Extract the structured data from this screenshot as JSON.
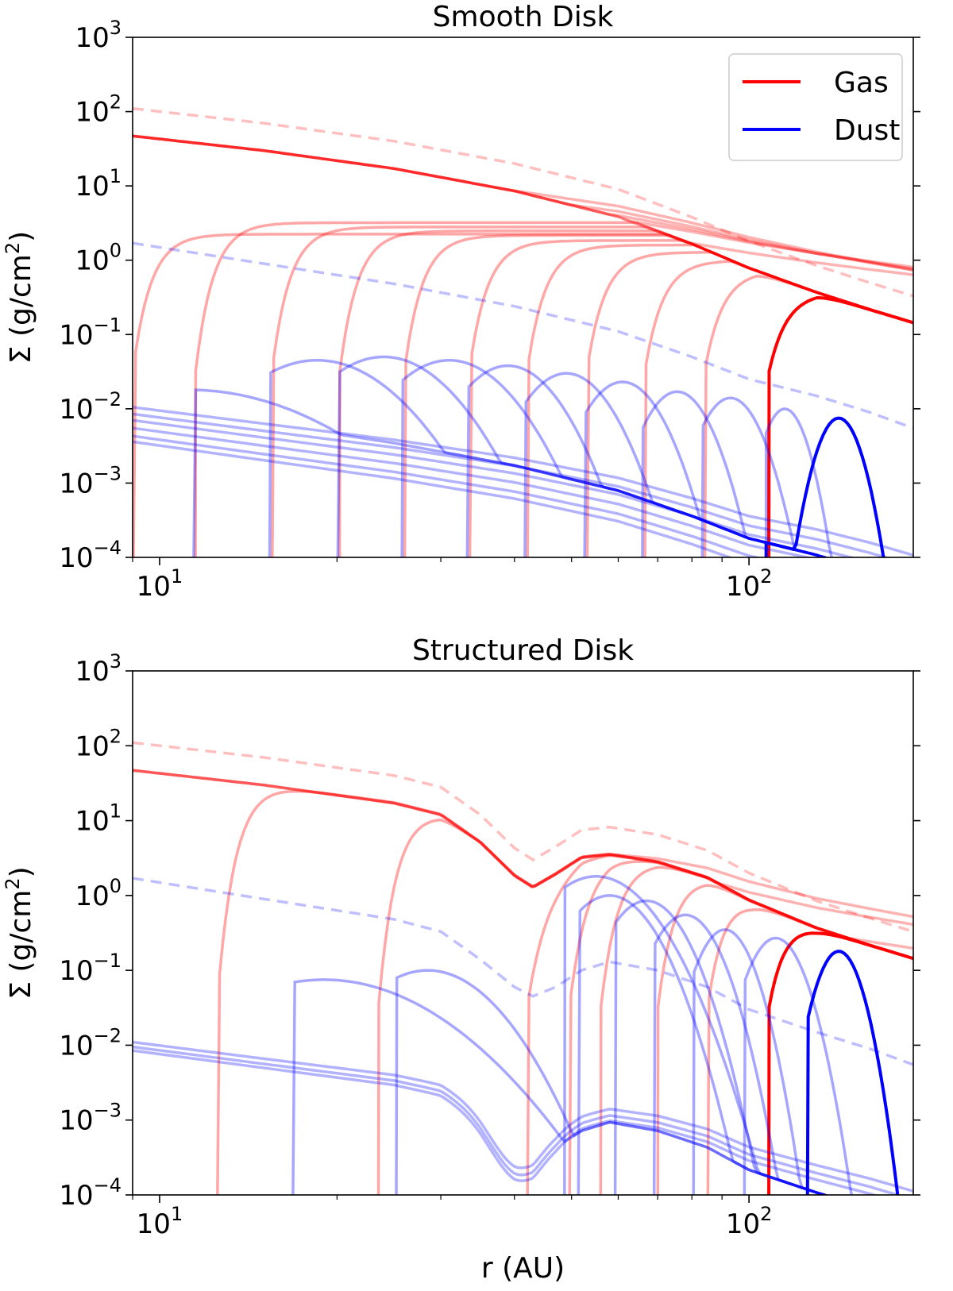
{
  "chart_data": [
    {
      "type": "line",
      "title": "Smooth Disk",
      "xlabel": "",
      "ylabel": "Σ (g/cm²)",
      "xscale": "log",
      "yscale": "log",
      "xlim": [
        9.0,
        190
      ],
      "ylim": [
        0.0001,
        1000
      ],
      "x_ticks": [
        "10^1",
        "10^2"
      ],
      "y_ticks": [
        "10^-4",
        "10^-3",
        "10^-2",
        "10^-1",
        "10^0",
        "10^1",
        "10^2",
        "10^3"
      ],
      "legend": {
        "placement": "top-right",
        "entries": [
          {
            "name": "Gas",
            "color": "#ff0000"
          },
          {
            "name": "Dust",
            "color": "#0000ff"
          }
        ]
      },
      "initial_profiles": [
        {
          "series": "Gas",
          "style": "dashed",
          "points": [
            [
              9,
              110
            ],
            [
              15,
              70
            ],
            [
              25,
              40
            ],
            [
              40,
              20
            ],
            [
              60,
              9
            ],
            [
              80,
              3.8
            ],
            [
              100,
              1.8
            ],
            [
              130,
              0.85
            ],
            [
              160,
              0.5
            ],
            [
              190,
              0.33
            ]
          ]
        },
        {
          "series": "Dust",
          "style": "dashed",
          "points": [
            [
              9,
              1.7
            ],
            [
              15,
              0.9
            ],
            [
              25,
              0.48
            ],
            [
              40,
              0.24
            ],
            [
              60,
              0.11
            ],
            [
              80,
              0.05
            ],
            [
              100,
              0.025
            ],
            [
              130,
              0.015
            ],
            [
              160,
              0.009
            ],
            [
              190,
              0.0055
            ]
          ]
        }
      ],
      "gas_background": [
        24,
        18,
        14,
        11,
        6.5
      ],
      "dust_background": [
        0.0105,
        0.0085,
        0.007,
        0.0055,
        0.0043,
        0.0036
      ],
      "gas_front_positions": [
        9,
        11.5,
        15.5,
        20.2,
        26,
        33.5,
        42,
        53,
        66.5,
        84,
        108
      ],
      "gas_front_plateaus": [
        1.4,
        2.0,
        1.75,
        1.55,
        1.35,
        1.15,
        1.0,
        0.8,
        0.62,
        0.45,
        0.23
      ],
      "dust_peaks": [
        {
          "r": 11.2,
          "value": 0.018,
          "width": 0.24
        },
        {
          "r": 18.5,
          "value": 0.045,
          "width": 0.14
        },
        {
          "r": 24,
          "value": 0.05,
          "width": 0.12
        },
        {
          "r": 31,
          "value": 0.045,
          "width": 0.11
        },
        {
          "r": 39,
          "value": 0.038,
          "width": 0.09
        },
        {
          "r": 49,
          "value": 0.03,
          "width": 0.08
        },
        {
          "r": 61,
          "value": 0.023,
          "width": 0.07
        },
        {
          "r": 75.5,
          "value": 0.017,
          "width": 0.06
        },
        {
          "r": 93,
          "value": 0.014,
          "width": 0.055
        },
        {
          "r": 115,
          "value": 0.01,
          "width": 0.04
        },
        {
          "r": 142,
          "value": 0.0075,
          "width": 0.04
        }
      ]
    },
    {
      "type": "line",
      "title": "Structured Disk",
      "xlabel": "r (AU)",
      "ylabel": "Σ (g/cm²)",
      "xscale": "log",
      "yscale": "log",
      "xlim": [
        9.0,
        190
      ],
      "ylim": [
        0.0001,
        1000
      ],
      "x_ticks": [
        "10^1",
        "10^2"
      ],
      "y_ticks": [
        "10^-4",
        "10^-3",
        "10^-2",
        "10^-1",
        "10^0",
        "10^1",
        "10^2",
        "10^3"
      ],
      "initial_profiles": [
        {
          "series": "Gas",
          "style": "dashed",
          "points": [
            [
              9,
              110
            ],
            [
              15,
              70
            ],
            [
              25,
              40
            ],
            [
              30,
              28
            ],
            [
              35,
              12
            ],
            [
              40,
              4.3
            ],
            [
              43,
              3.0
            ],
            [
              47,
              4.5
            ],
            [
              52,
              7.5
            ],
            [
              58,
              8.2
            ],
            [
              70,
              6.5
            ],
            [
              85,
              4.0
            ],
            [
              100,
              2.0
            ],
            [
              130,
              0.85
            ],
            [
              160,
              0.5
            ],
            [
              190,
              0.33
            ]
          ]
        },
        {
          "series": "Dust",
          "style": "dashed",
          "points": [
            [
              9,
              1.7
            ],
            [
              15,
              0.9
            ],
            [
              25,
              0.48
            ],
            [
              30,
              0.33
            ],
            [
              35,
              0.14
            ],
            [
              40,
              0.06
            ],
            [
              43,
              0.045
            ],
            [
              47,
              0.06
            ],
            [
              52,
              0.1
            ],
            [
              58,
              0.13
            ],
            [
              70,
              0.1
            ],
            [
              85,
              0.06
            ],
            [
              100,
              0.03
            ],
            [
              130,
              0.015
            ],
            [
              160,
              0.009
            ],
            [
              190,
              0.0055
            ]
          ]
        }
      ],
      "gas_background": [
        17,
        10,
        3.6
      ],
      "gas_gap_minima": [
        0.95,
        0.8,
        0.6,
        0.22
      ],
      "dust_background": [
        0.011,
        0.0095,
        0.0085
      ],
      "dust_gap_minima": [
        0.0035,
        0.003,
        0.0025,
        0.0017,
        0.001
      ],
      "gas_front_positions": [
        12.5,
        23.5,
        42,
        49.5,
        56,
        70,
        85,
        108
      ],
      "dust_peaks": [
        {
          "r": 19,
          "value": 0.075,
          "width": 0.2
        },
        {
          "r": 28.5,
          "value": 0.1,
          "width": 0.12
        },
        {
          "r": 55,
          "value": 1.8,
          "width": 0.1
        },
        {
          "r": 58,
          "value": 1.0,
          "width": 0.08
        },
        {
          "r": 67,
          "value": 0.85,
          "width": 0.07
        },
        {
          "r": 78,
          "value": 0.55,
          "width": 0.06
        },
        {
          "r": 91,
          "value": 0.35,
          "width": 0.05
        },
        {
          "r": 111,
          "value": 0.27,
          "width": 0.05
        },
        {
          "r": 142,
          "value": 0.18,
          "width": 0.04
        }
      ]
    }
  ]
}
